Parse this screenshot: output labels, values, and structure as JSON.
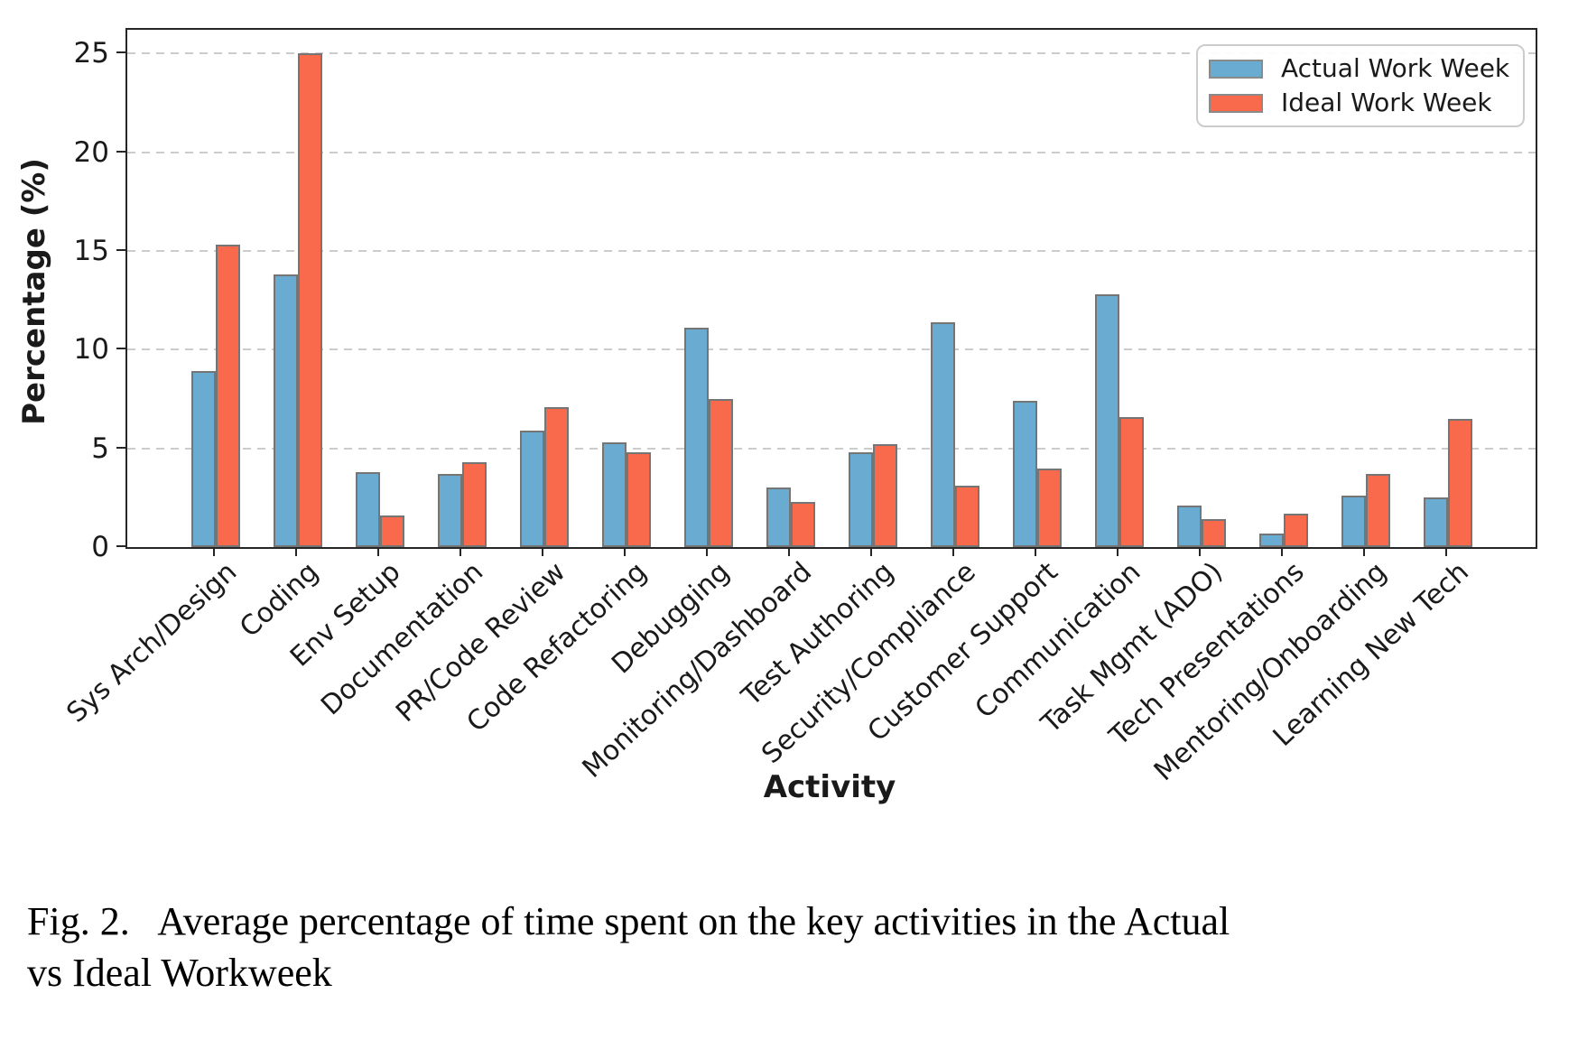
{
  "figure": {
    "caption_line1": "Fig. 2.   Average percentage of time spent on the key activities in the Actual",
    "caption_line2": "vs Ideal Workweek"
  },
  "chart_data": {
    "type": "bar",
    "title": "",
    "xlabel": "Activity",
    "ylabel": "Percentage (%)",
    "ylim": [
      0,
      26.2
    ],
    "yticks": [
      0,
      5,
      10,
      15,
      20,
      25
    ],
    "grid": "horizontal dashed",
    "legend_position": "upper right",
    "categories": [
      "Sys Arch/Design",
      "Coding",
      "Env Setup",
      "Documentation",
      "PR/Code Review",
      "Code Refactoring",
      "Debugging",
      "Monitoring/Dashboard",
      "Test Authoring",
      "Security/Compliance",
      "Customer Support",
      "Communication",
      "Task Mgmt (ADO)",
      "Tech Presentations",
      "Mentoring/Onboarding",
      "Learning New Tech"
    ],
    "series": [
      {
        "name": "Actual Work Week",
        "color": "#6aabd2",
        "values": [
          8.9,
          13.8,
          3.8,
          3.7,
          5.9,
          5.3,
          11.1,
          3.0,
          4.8,
          11.4,
          7.4,
          12.8,
          2.1,
          0.7,
          2.6,
          2.5
        ]
      },
      {
        "name": "Ideal Work Week",
        "color": "#f9694c",
        "values": [
          15.3,
          25.0,
          1.6,
          4.3,
          7.1,
          4.8,
          7.5,
          2.3,
          5.2,
          3.1,
          4.0,
          6.6,
          1.4,
          1.7,
          3.7,
          6.5
        ]
      }
    ],
    "bar_edge_color": "#757575"
  }
}
